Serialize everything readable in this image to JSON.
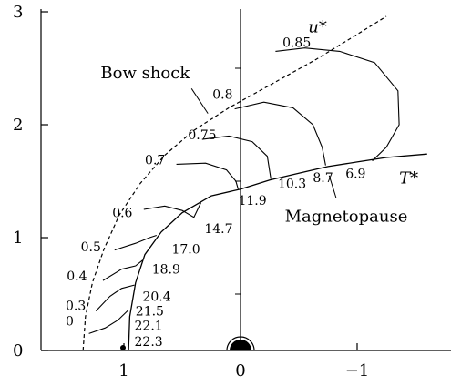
{
  "chart_data": {
    "type": "line",
    "title": "",
    "xlabel": "",
    "ylabel": "",
    "xlim": [
      1.6,
      -1.6
    ],
    "ylim": [
      0,
      3
    ],
    "x_ticks": [
      {
        "value": 1,
        "label": "1"
      },
      {
        "value": 0,
        "label": "0"
      },
      {
        "value": -1,
        "label": "−1"
      }
    ],
    "y_ticks": [
      {
        "value": 0,
        "label": "0"
      },
      {
        "value": 1,
        "label": "1"
      },
      {
        "value": 2,
        "label": "2"
      },
      {
        "value": 3,
        "label": "3"
      }
    ],
    "grid": false,
    "curves": {
      "bow_shock": {
        "name": "Bow shock",
        "style": "dashed",
        "points": [
          [
            1.35,
            0.0
          ],
          [
            1.33,
            0.3
          ],
          [
            1.27,
            0.6
          ],
          [
            1.17,
            0.9
          ],
          [
            1.04,
            1.2
          ],
          [
            0.86,
            1.48
          ],
          [
            0.65,
            1.73
          ],
          [
            0.4,
            1.95
          ],
          [
            0.1,
            2.15
          ],
          [
            -0.25,
            2.35
          ],
          [
            -0.65,
            2.58
          ],
          [
            -1.0,
            2.8
          ],
          [
            -1.25,
            2.96
          ]
        ]
      },
      "magnetopause": {
        "name": "Magnetopause",
        "style": "solid",
        "points": [
          [
            0.96,
            0.0
          ],
          [
            0.95,
            0.3
          ],
          [
            0.9,
            0.6
          ],
          [
            0.82,
            0.85
          ],
          [
            0.68,
            1.05
          ],
          [
            0.5,
            1.22
          ],
          [
            0.25,
            1.37
          ],
          [
            0.0,
            1.43
          ],
          [
            -0.25,
            1.51
          ],
          [
            -0.5,
            1.57
          ],
          [
            -0.75,
            1.63
          ],
          [
            -1.0,
            1.67
          ],
          [
            -1.25,
            1.71
          ],
          [
            -1.6,
            1.74
          ]
        ]
      },
      "u_star_contours": [
        {
          "label": "0.85",
          "points": [
            [
              -0.3,
              2.65
            ],
            [
              -0.55,
              2.68
            ],
            [
              -0.85,
              2.65
            ],
            [
              -1.15,
              2.55
            ],
            [
              -1.35,
              2.3
            ],
            [
              -1.36,
              2.0
            ],
            [
              -1.25,
              1.8
            ],
            [
              -1.13,
              1.68
            ]
          ]
        },
        {
          "label": "0.8",
          "points": [
            [
              0.05,
              2.14
            ],
            [
              -0.2,
              2.2
            ],
            [
              -0.45,
              2.15
            ],
            [
              -0.62,
              2.0
            ],
            [
              -0.7,
              1.8
            ],
            [
              -0.73,
              1.64
            ]
          ]
        },
        {
          "label": "0.75",
          "points": [
            [
              0.33,
              1.87
            ],
            [
              0.1,
              1.9
            ],
            [
              -0.1,
              1.85
            ],
            [
              -0.23,
              1.72
            ],
            [
              -0.26,
              1.52
            ]
          ]
        },
        {
          "label": "0.7",
          "points": [
            [
              0.55,
              1.65
            ],
            [
              0.3,
              1.66
            ],
            [
              0.12,
              1.6
            ],
            [
              0.04,
              1.5
            ],
            [
              0.02,
              1.43
            ]
          ]
        },
        {
          "label": "0.6",
          "points": [
            [
              0.83,
              1.25
            ],
            [
              0.65,
              1.28
            ],
            [
              0.5,
              1.24
            ],
            [
              0.4,
              1.18
            ],
            [
              0.34,
              1.31
            ]
          ]
        },
        {
          "label": "0.5",
          "points": [
            [
              1.08,
              0.89
            ],
            [
              0.9,
              0.95
            ],
            [
              0.78,
              1.0
            ],
            [
              0.72,
              1.02
            ]
          ]
        },
        {
          "label": "0.4",
          "points": [
            [
              1.18,
              0.62
            ],
            [
              1.02,
              0.72
            ],
            [
              0.9,
              0.75
            ],
            [
              0.84,
              0.8
            ]
          ]
        },
        {
          "label": "0.3",
          "points": [
            [
              1.24,
              0.35
            ],
            [
              1.12,
              0.48
            ],
            [
              1.02,
              0.55
            ],
            [
              0.91,
              0.58
            ]
          ]
        },
        {
          "label": "0",
          "points": [
            [
              1.3,
              0.15
            ],
            [
              1.16,
              0.2
            ],
            [
              1.05,
              0.27
            ],
            [
              0.96,
              0.36
            ]
          ]
        }
      ],
      "magnetopause_extra": {
        "points": [
          [
            1.04,
            0.0
          ],
          [
            1.1,
            0.12
          ],
          [
            1.15,
            0.25
          ]
        ]
      }
    },
    "u_star_labels": [
      {
        "text": "0.85",
        "x": -0.36,
        "y": 2.69
      },
      {
        "text": "0.8",
        "x": 0.24,
        "y": 2.23
      },
      {
        "text": "0.75",
        "x": 0.45,
        "y": 1.87
      },
      {
        "text": "0.7",
        "x": 0.82,
        "y": 1.65
      },
      {
        "text": "0.6",
        "x": 1.1,
        "y": 1.18
      },
      {
        "text": "0.5",
        "x": 1.37,
        "y": 0.88
      },
      {
        "text": "0.4",
        "x": 1.49,
        "y": 0.62
      },
      {
        "text": "0.3",
        "x": 1.5,
        "y": 0.36
      },
      {
        "text": "0",
        "x": 1.5,
        "y": 0.22
      }
    ],
    "t_star_labels": [
      {
        "text": "6.9",
        "x": -0.9,
        "y": 1.53
      },
      {
        "text": "8.7",
        "x": -0.62,
        "y": 1.49
      },
      {
        "text": "10.3",
        "x": -0.32,
        "y": 1.44
      },
      {
        "text": "11.9",
        "x": 0.02,
        "y": 1.29
      },
      {
        "text": "14.7",
        "x": 0.31,
        "y": 1.04
      },
      {
        "text": "17.0",
        "x": 0.59,
        "y": 0.86
      },
      {
        "text": "18.9",
        "x": 0.76,
        "y": 0.68
      },
      {
        "text": "20.4",
        "x": 0.84,
        "y": 0.44
      },
      {
        "text": "21.5",
        "x": 0.9,
        "y": 0.31
      },
      {
        "text": "22.1",
        "x": 0.91,
        "y": 0.18
      },
      {
        "text": "22.3",
        "x": 0.91,
        "y": 0.04
      }
    ],
    "annotations": [
      {
        "text": "u*",
        "x": -0.58,
        "y": 2.82
      },
      {
        "text": "Bow shock",
        "x": 1.2,
        "y": 2.41
      },
      {
        "text": "T*",
        "x": -1.36,
        "y": 1.48
      },
      {
        "text": "Magnetopause",
        "x": -0.38,
        "y": 1.14
      }
    ]
  }
}
